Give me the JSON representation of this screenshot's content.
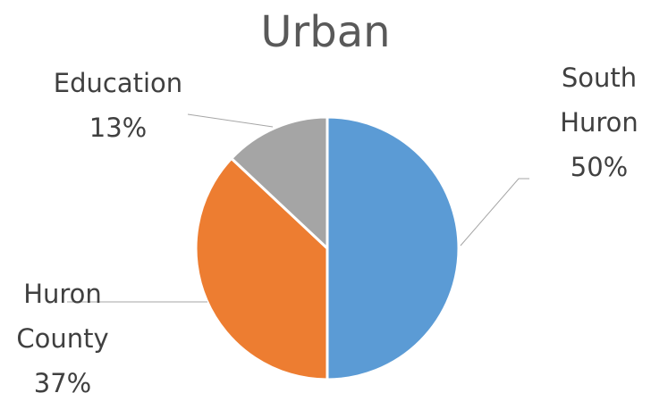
{
  "chart_data": {
    "type": "pie",
    "title": "Urban",
    "categories": [
      "South Huron",
      "Huron County",
      "Education"
    ],
    "values": [
      50,
      37,
      13
    ],
    "value_labels": [
      "50%",
      "37%",
      "13%"
    ],
    "colors": [
      "#5b9bd5",
      "#ed7d31",
      "#a5a5a5"
    ]
  }
}
